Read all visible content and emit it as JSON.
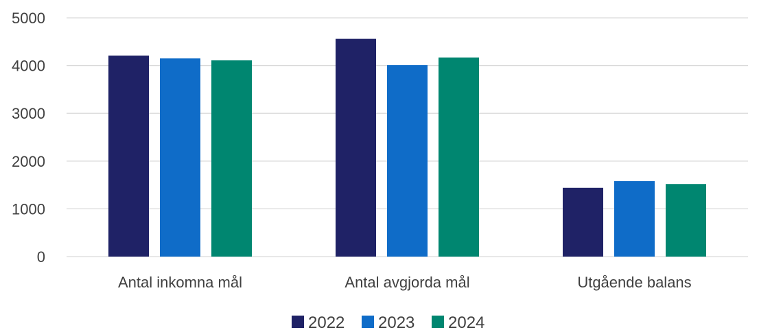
{
  "chart_data": {
    "type": "bar",
    "categories": [
      "Antal inkomna mål",
      "Antal avgjorda mål",
      "Utgående balans"
    ],
    "series": [
      {
        "name": "2022",
        "color": "#1f2266",
        "values": [
          4210,
          4560,
          1440
        ]
      },
      {
        "name": "2023",
        "color": "#0f6cc8",
        "values": [
          4150,
          4010,
          1580
        ]
      },
      {
        "name": "2024",
        "color": "#008670",
        "values": [
          4110,
          4170,
          1520
        ]
      }
    ],
    "title": "",
    "xlabel": "",
    "ylabel": "",
    "ylim": [
      0,
      5000
    ],
    "yticks": [
      "0",
      "1000",
      "2000",
      "3000",
      "4000",
      "5000"
    ],
    "grid": true,
    "legend_position": "bottom"
  }
}
